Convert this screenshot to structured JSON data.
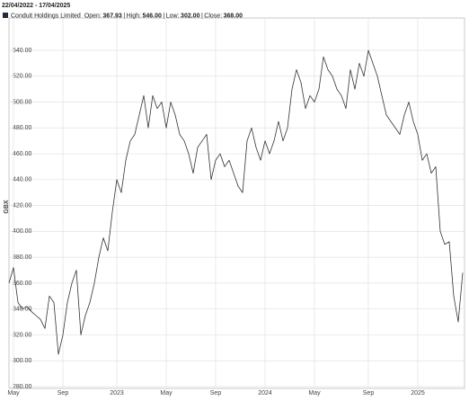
{
  "chart_data": {
    "type": "line",
    "title": "22/04/2022 - 17/04/2025",
    "stats": [
      {
        "label": "Open:",
        "value": "367.93"
      },
      {
        "label": "High:",
        "value": "546.00"
      },
      {
        "label": "Low:",
        "value": "302.00"
      },
      {
        "label": "Close:",
        "value": "368.00"
      }
    ],
    "separator": "|",
    "y_label": "GBX",
    "grid": true,
    "categories": [
      null,
      "May",
      null,
      null,
      null,
      null,
      null,
      null,
      null,
      null,
      null,
      null,
      "Sep",
      null,
      null,
      null,
      null,
      null,
      null,
      null,
      null,
      null,
      null,
      null,
      "2023",
      null,
      null,
      null,
      null,
      null,
      null,
      null,
      null,
      null,
      null,
      "May",
      null,
      null,
      null,
      null,
      null,
      null,
      null,
      null,
      null,
      null,
      "Sep",
      null,
      null,
      null,
      null,
      null,
      null,
      null,
      null,
      null,
      null,
      "2024",
      null,
      null,
      null,
      null,
      null,
      null,
      null,
      null,
      null,
      null,
      "May",
      null,
      null,
      null,
      null,
      null,
      null,
      null,
      null,
      null,
      null,
      null,
      "Sep",
      null,
      null,
      null,
      null,
      null,
      null,
      null,
      null,
      null,
      null,
      "2025",
      null,
      null,
      null,
      null,
      null,
      null,
      null,
      null,
      null,
      null
    ],
    "series": [
      {
        "name": "Conduit Holdings Limited",
        "color": "#333333",
        "values": [
          360,
          372,
          345,
          340,
          342,
          338,
          335,
          332,
          325,
          350,
          345,
          305,
          320,
          345,
          360,
          370,
          320,
          335,
          345,
          360,
          380,
          395,
          385,
          415,
          440,
          430,
          455,
          470,
          475,
          490,
          505,
          480,
          505,
          495,
          500,
          480,
          500,
          490,
          475,
          470,
          460,
          445,
          465,
          470,
          475,
          440,
          455,
          460,
          450,
          455,
          445,
          435,
          430,
          470,
          480,
          465,
          455,
          470,
          460,
          470,
          485,
          470,
          480,
          510,
          525,
          515,
          495,
          505,
          500,
          510,
          535,
          525,
          520,
          510,
          505,
          495,
          525,
          510,
          530,
          520,
          540,
          530,
          520,
          505,
          490,
          485,
          480,
          475,
          490,
          500,
          485,
          475,
          455,
          460,
          445,
          450,
          400,
          390,
          392,
          350,
          330,
          368
        ]
      }
    ],
    "ylim": [
      280,
      565
    ],
    "yticks": [
      {
        "value": 280,
        "label": "280.00"
      },
      {
        "value": 300,
        "label": "300.00"
      },
      {
        "value": 320,
        "label": "320.00"
      },
      {
        "value": 340,
        "label": "340.00"
      },
      {
        "value": 360,
        "label": "360.00"
      },
      {
        "value": 380,
        "label": "380.00"
      },
      {
        "value": 400,
        "label": "400.00"
      },
      {
        "value": 420,
        "label": "420.00"
      },
      {
        "value": 440,
        "label": "440.00"
      },
      {
        "value": 460,
        "label": "460.00"
      },
      {
        "value": 480,
        "label": "480.00"
      },
      {
        "value": 500,
        "label": "500.00"
      },
      {
        "value": 520,
        "label": "520.00"
      },
      {
        "value": 540,
        "label": "540.00"
      }
    ]
  }
}
